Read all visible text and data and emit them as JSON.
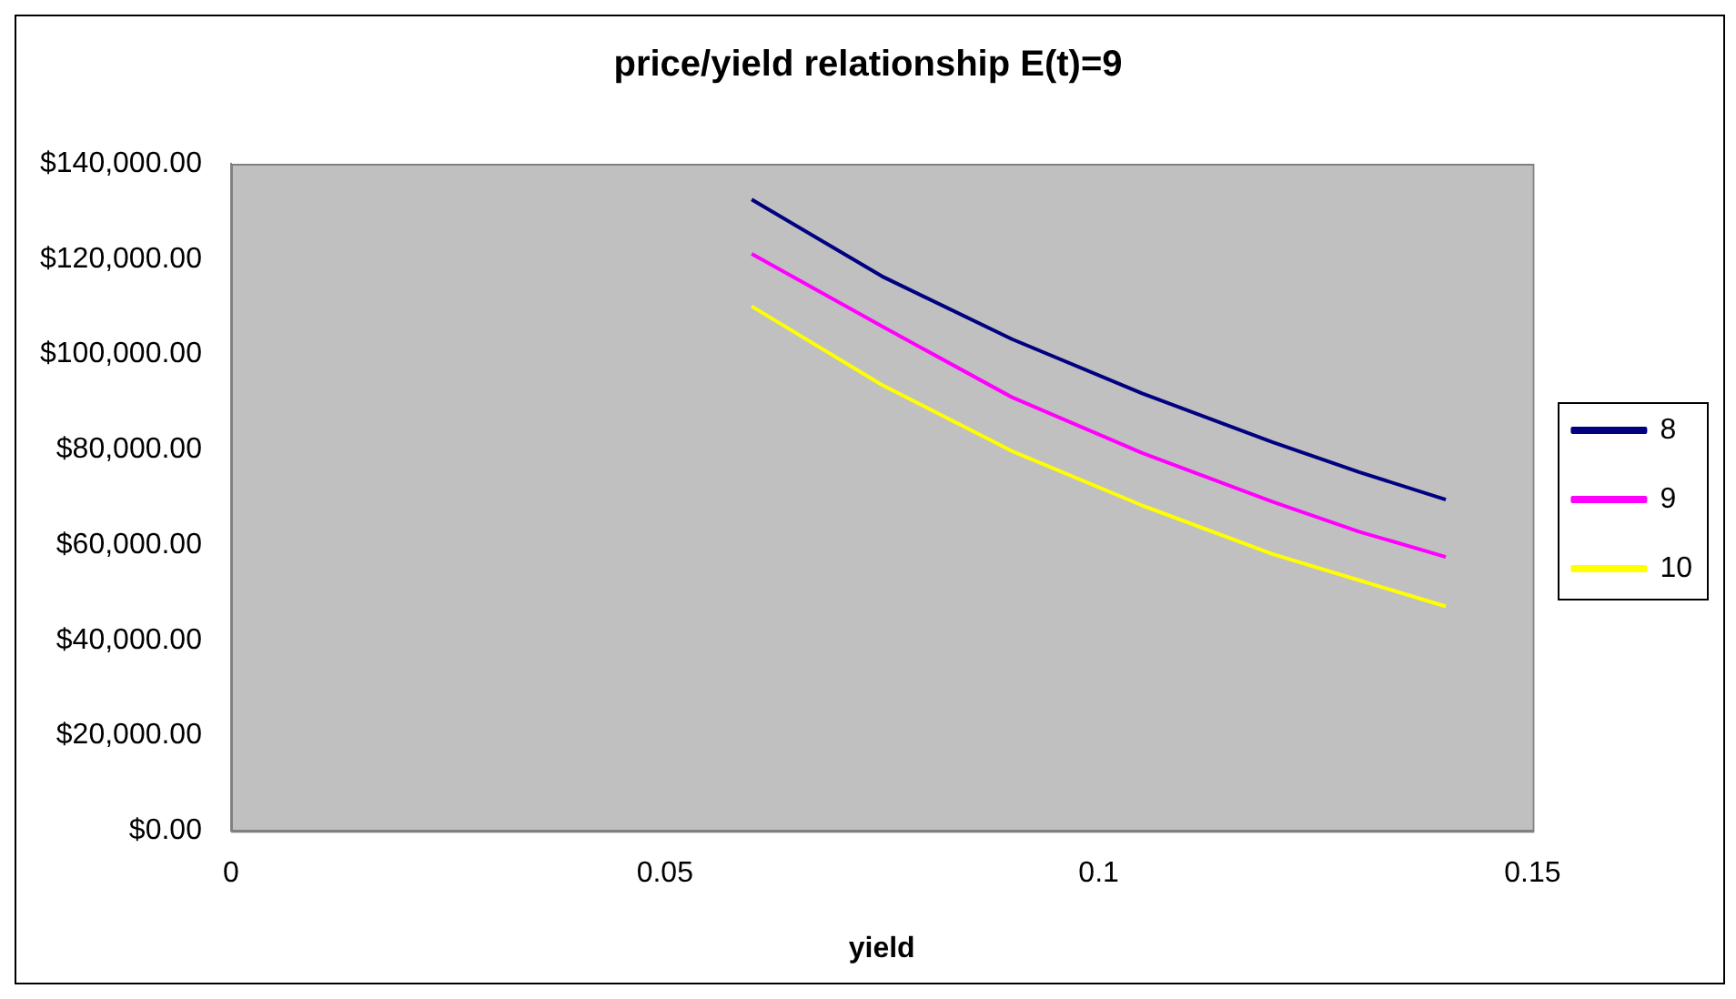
{
  "chart_data": {
    "type": "line",
    "title": "price/yield relationship E(t)=9",
    "xlabel": "yield",
    "x": [
      0.06,
      0.075,
      0.09,
      0.105,
      0.12,
      0.13,
      0.14
    ],
    "series": [
      {
        "name": "8",
        "color": "#000080",
        "values": [
          132500,
          116400,
          103200,
          91800,
          81600,
          75300,
          69500
        ]
      },
      {
        "name": "9",
        "color": "#ff00ff",
        "values": [
          121100,
          105900,
          91000,
          79300,
          69100,
          62800,
          57500
        ]
      },
      {
        "name": "10",
        "color": "#ffff00",
        "values": [
          110100,
          93600,
          79700,
          68300,
          58100,
          52600,
          47100
        ]
      }
    ],
    "xlim": [
      0,
      0.15
    ],
    "xticks": [
      0,
      0.05,
      0.1,
      0.15
    ],
    "ylim": [
      0,
      140000
    ],
    "yticks": [
      {
        "value": 0,
        "label": "$0.00"
      },
      {
        "value": 20000,
        "label": "$20,000.00"
      },
      {
        "value": 40000,
        "label": "$40,000.00"
      },
      {
        "value": 60000,
        "label": "$60,000.00"
      },
      {
        "value": 80000,
        "label": "$80,000.00"
      },
      {
        "value": 100000,
        "label": "$100,000.00"
      },
      {
        "value": 120000,
        "label": "$120,000.00"
      },
      {
        "value": 140000,
        "label": "$140,000.00"
      }
    ],
    "grid": false,
    "legend": "right",
    "marker": "none",
    "line_style": "solid"
  }
}
